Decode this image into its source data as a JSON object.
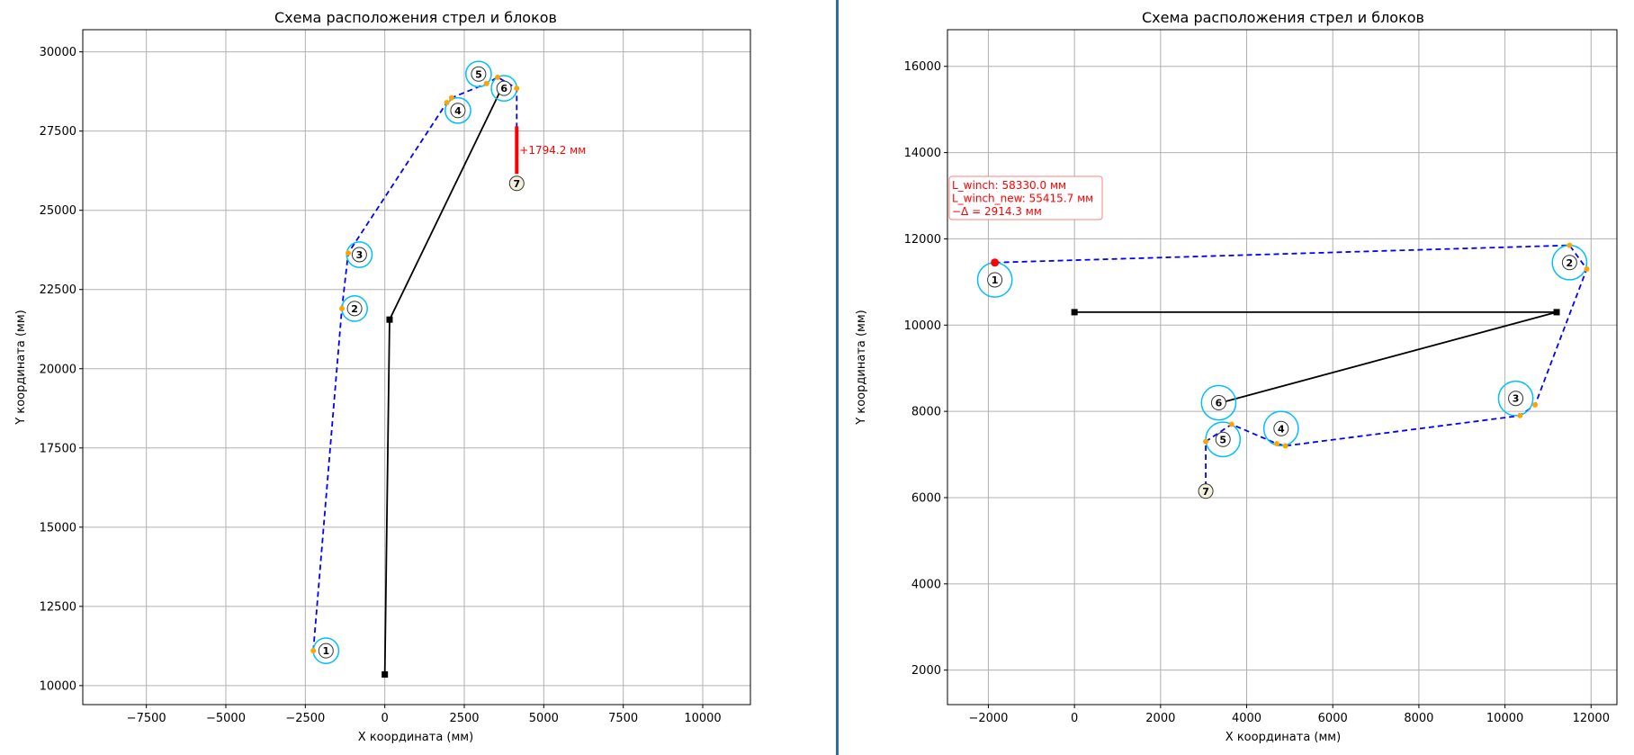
{
  "colors": {
    "rope": "#0000ff",
    "pulley": "#00bfff",
    "boom": "#000000",
    "contact": "#ffa500",
    "accent": "#ff0000",
    "grid": "#b0b0b0",
    "divider": "#2e6da4"
  },
  "left_chart": {
    "type": "scatter",
    "title": "Схема расположения стрел и блоков",
    "xlabel": "X координата (мм)",
    "ylabel": "Y координата (мм)",
    "xlim": [
      -9500,
      11500
    ],
    "ylim": [
      9400,
      30700
    ],
    "xticks": [
      -7500,
      -5000,
      -2500,
      0,
      2500,
      5000,
      7500,
      10000
    ],
    "yticks": [
      10000,
      12500,
      15000,
      17500,
      20000,
      22500,
      25000,
      27500,
      30000
    ],
    "xtick_labels": [
      "−7500",
      "−5000",
      "−2500",
      "0",
      "2500",
      "5000",
      "7500",
      "10000"
    ],
    "ytick_labels": [
      "10000",
      "12500",
      "15000",
      "17500",
      "20000",
      "22500",
      "25000",
      "27500",
      "30000"
    ],
    "grid": true,
    "boom": [
      [
        0,
        10350
      ],
      [
        150,
        21550
      ],
      [
        3650,
        28800
      ]
    ],
    "rope": [
      [
        -2250,
        11100
      ],
      [
        -1350,
        21900
      ],
      [
        -1150,
        23650
      ],
      [
        1950,
        28400
      ],
      [
        2100,
        28550
      ],
      [
        3200,
        29000
      ],
      [
        3550,
        29200
      ],
      [
        4150,
        28850
      ],
      [
        4150,
        25850
      ]
    ],
    "contacts": [
      [
        -2250,
        11100
      ],
      [
        -1350,
        21900
      ],
      [
        -1150,
        23650
      ],
      [
        1950,
        28400
      ],
      [
        2100,
        28550
      ],
      [
        3200,
        29000
      ],
      [
        3550,
        29200
      ],
      [
        4150,
        28850
      ]
    ],
    "pulleys": [
      {
        "label": "1",
        "x": -1850,
        "y": 11100,
        "r": 400
      },
      {
        "label": "2",
        "x": -950,
        "y": 21900,
        "r": 400
      },
      {
        "label": "3",
        "x": -800,
        "y": 23600,
        "r": 400
      },
      {
        "label": "4",
        "x": 2300,
        "y": 28150,
        "r": 400
      },
      {
        "label": "5",
        "x": 2950,
        "y": 29300,
        "r": 400
      },
      {
        "label": "6",
        "x": 3750,
        "y": 28850,
        "r": 400
      }
    ],
    "hook": {
      "label": "7",
      "x": 4150,
      "y": 25850
    },
    "delta_bar": {
      "x": 4150,
      "y_from": 26150,
      "y_to": 27650,
      "label": "+1794.2 мм"
    }
  },
  "right_chart": {
    "type": "scatter",
    "title": "Схема расположения стрел и блоков",
    "xlabel": "X координата (мм)",
    "ylabel": "Y координата (мм)",
    "xlim": [
      -2950,
      12600
    ],
    "ylim": [
      1200,
      16850
    ],
    "xticks": [
      -2000,
      0,
      2000,
      4000,
      6000,
      8000,
      10000,
      12000
    ],
    "yticks": [
      2000,
      4000,
      6000,
      8000,
      10000,
      12000,
      14000,
      16000
    ],
    "xtick_labels": [
      "−2000",
      "0",
      "2000",
      "4000",
      "6000",
      "8000",
      "10000",
      "12000"
    ],
    "ytick_labels": [
      "2000",
      "4000",
      "6000",
      "8000",
      "10000",
      "12000",
      "14000",
      "16000"
    ],
    "grid": true,
    "boom": [
      [
        0,
        10300
      ],
      [
        11200,
        10300
      ],
      [
        3400,
        8200
      ]
    ],
    "rope": [
      [
        -1850,
        11450
      ],
      [
        11500,
        11850
      ],
      [
        11900,
        11300
      ],
      [
        10700,
        8150
      ],
      [
        10350,
        7900
      ],
      [
        4900,
        7200
      ],
      [
        4700,
        7250
      ],
      [
        3650,
        7700
      ],
      [
        3050,
        7300
      ],
      [
        3050,
        6150
      ]
    ],
    "contacts": [
      [
        11500,
        11850
      ],
      [
        11900,
        11300
      ],
      [
        10700,
        8150
      ],
      [
        10350,
        7900
      ],
      [
        4900,
        7200
      ],
      [
        4700,
        7250
      ],
      [
        3650,
        7700
      ],
      [
        3050,
        7300
      ]
    ],
    "winch": {
      "x": -1850,
      "y": 11450
    },
    "pulleys": [
      {
        "label": "1",
        "x": -1850,
        "y": 11050,
        "r": 400
      },
      {
        "label": "2",
        "x": 11500,
        "y": 11450,
        "r": 400
      },
      {
        "label": "3",
        "x": 10250,
        "y": 8300,
        "r": 400
      },
      {
        "label": "4",
        "x": 4800,
        "y": 7600,
        "r": 400
      },
      {
        "label": "5",
        "x": 3450,
        "y": 7350,
        "r": 400
      },
      {
        "label": "6",
        "x": 3350,
        "y": 8200,
        "r": 400
      }
    ],
    "hook": {
      "label": "7",
      "x": 3050,
      "y": 6150
    },
    "annotation": [
      "L_winch: 58330.0 мм",
      "L_winch_new: 55415.7 мм",
      "−Δ = 2914.3 мм"
    ]
  }
}
